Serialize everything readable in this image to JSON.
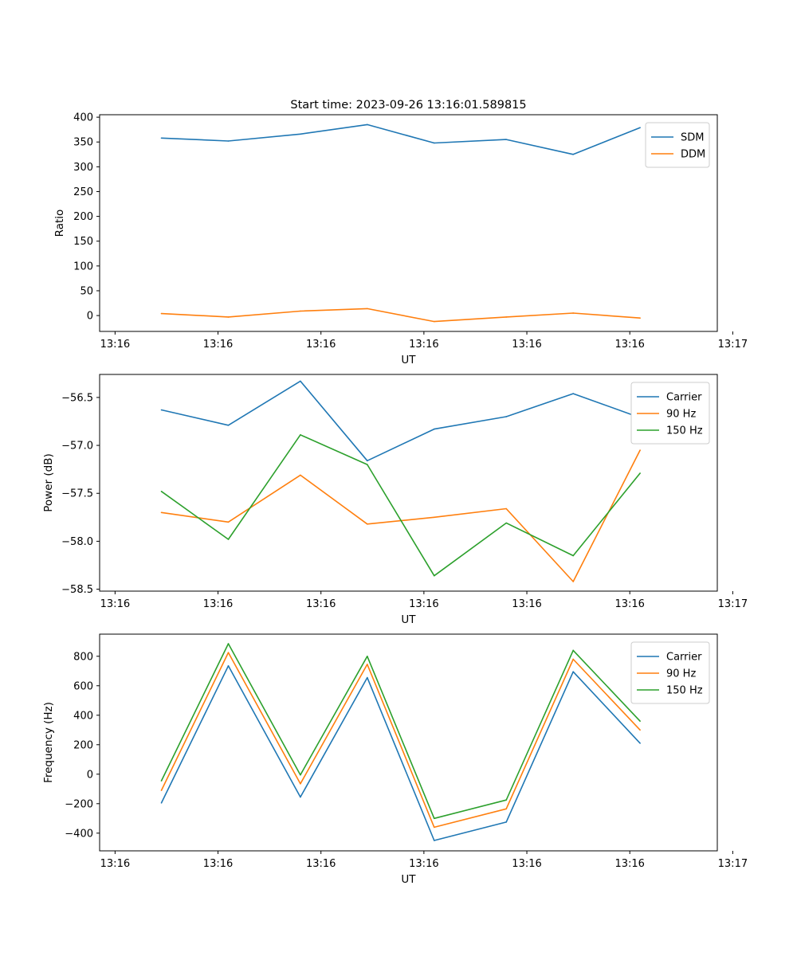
{
  "title": "Start time: 2023-09-26 13:16:01.589815",
  "colors": {
    "blue": "#1f77b4",
    "orange": "#ff7f0e",
    "green": "#2ca02c"
  },
  "chart_data": [
    {
      "type": "line",
      "title": "Start time: 2023-09-26 13:16:01.589815",
      "xlabel": "UT",
      "ylabel": "Ratio",
      "x": [
        1.5,
        2.8,
        4.2,
        5.5,
        6.8,
        8.2,
        9.5,
        10.8
      ],
      "xlim": [
        0.3,
        12.3
      ],
      "x_ticks": [
        0.6,
        2.6,
        4.6,
        6.6,
        8.6,
        10.6,
        12.6
      ],
      "x_tick_labels": [
        "13:16",
        "13:16",
        "13:16",
        "13:16",
        "13:16",
        "13:16",
        "13:17"
      ],
      "ylim": [
        -32,
        405
      ],
      "y_ticks": [
        0,
        50,
        100,
        150,
        200,
        250,
        300,
        350,
        400
      ],
      "y_tick_labels": [
        "0",
        "50",
        "100",
        "150",
        "200",
        "250",
        "300",
        "350",
        "400"
      ],
      "legend_position": "top-right",
      "grid": false,
      "series": [
        {
          "name": "SDM",
          "color": "#1f77b4",
          "values": [
            358,
            352,
            366,
            385,
            348,
            355,
            325,
            379
          ]
        },
        {
          "name": "DDM",
          "color": "#ff7f0e",
          "values": [
            4,
            -3,
            9,
            14,
            -12,
            -3,
            5,
            -5
          ]
        }
      ]
    },
    {
      "type": "line",
      "xlabel": "UT",
      "ylabel": "Power (dB)",
      "x": [
        1.5,
        2.8,
        4.2,
        5.5,
        6.8,
        8.2,
        9.5,
        10.8
      ],
      "xlim": [
        0.3,
        12.3
      ],
      "x_ticks": [
        0.6,
        2.6,
        4.6,
        6.6,
        8.6,
        10.6,
        12.6
      ],
      "x_tick_labels": [
        "13:16",
        "13:16",
        "13:16",
        "13:16",
        "13:16",
        "13:16",
        "13:17"
      ],
      "ylim": [
        -58.52,
        -56.26
      ],
      "y_ticks": [
        -56.5,
        -57.0,
        -57.5,
        -58.0,
        -58.5
      ],
      "y_tick_labels": [
        "−56.5",
        "−57.0",
        "−57.5",
        "−58.0",
        "−58.5"
      ],
      "legend_position": "top-right",
      "grid": false,
      "series": [
        {
          "name": "Carrier",
          "color": "#1f77b4",
          "values": [
            -56.63,
            -56.79,
            -56.33,
            -57.16,
            -56.83,
            -56.7,
            -56.46,
            -56.71
          ]
        },
        {
          "name": "90 Hz",
          "color": "#ff7f0e",
          "values": [
            -57.7,
            -57.8,
            -57.31,
            -57.82,
            -57.75,
            -57.66,
            -58.42,
            -57.05
          ]
        },
        {
          "name": "150 Hz",
          "color": "#2ca02c",
          "values": [
            -57.48,
            -57.98,
            -56.89,
            -57.2,
            -58.36,
            -57.81,
            -58.15,
            -57.29
          ]
        }
      ]
    },
    {
      "type": "line",
      "xlabel": "UT",
      "ylabel": "Frequency (Hz)",
      "x": [
        1.5,
        2.8,
        4.2,
        5.5,
        6.8,
        8.2,
        9.5,
        10.8
      ],
      "xlim": [
        0.3,
        12.3
      ],
      "x_ticks": [
        0.6,
        2.6,
        4.6,
        6.6,
        8.6,
        10.6,
        12.6
      ],
      "x_tick_labels": [
        "13:16",
        "13:16",
        "13:16",
        "13:16",
        "13:16",
        "13:16",
        "13:17"
      ],
      "ylim": [
        -520,
        950
      ],
      "y_ticks": [
        800,
        600,
        400,
        200,
        0,
        -200,
        -400
      ],
      "y_tick_labels": [
        "800",
        "600",
        "400",
        "200",
        "0",
        "−200",
        "−400"
      ],
      "legend_position": "top-right",
      "grid": false,
      "series": [
        {
          "name": "Carrier",
          "color": "#1f77b4",
          "values": [
            -195,
            735,
            -155,
            655,
            -450,
            -325,
            695,
            210
          ]
        },
        {
          "name": "90 Hz",
          "color": "#ff7f0e",
          "values": [
            -110,
            825,
            -65,
            745,
            -360,
            -235,
            780,
            300
          ]
        },
        {
          "name": "150 Hz",
          "color": "#2ca02c",
          "values": [
            -45,
            885,
            -5,
            800,
            -300,
            -175,
            840,
            360
          ]
        }
      ]
    }
  ]
}
